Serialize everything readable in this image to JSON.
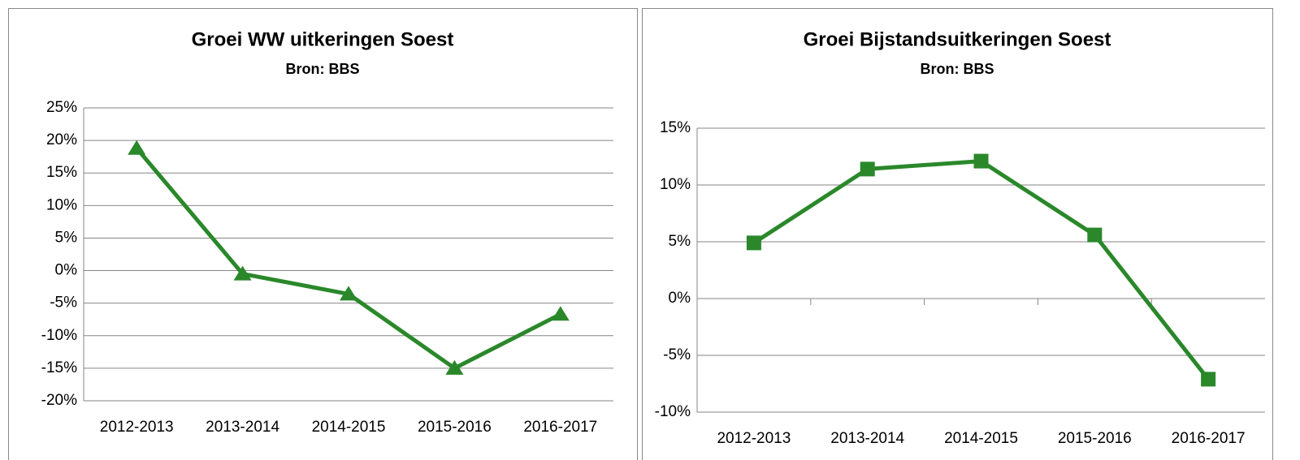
{
  "chart_data": [
    {
      "type": "line",
      "title": "Groei WW uitkeringen Soest",
      "subtitle": "Bron: BBS",
      "categories": [
        "2012-2013",
        "2013-2014",
        "2014-2015",
        "2015-2016",
        "2016-2017"
      ],
      "series": [
        {
          "color": "#2a882a",
          "marker": "triangle",
          "values": [
            18.8,
            -0.5,
            -3.6,
            -15,
            -6.7
          ]
        }
      ],
      "ylim": [
        -20,
        25
      ],
      "yticks": [
        {
          "value": -20,
          "label": "-20%"
        },
        {
          "value": -15,
          "label": "-15%"
        },
        {
          "value": -10,
          "label": "-10%"
        },
        {
          "value": -5,
          "label": "-5%"
        },
        {
          "value": 0,
          "label": "0%"
        },
        {
          "value": 5,
          "label": "5%"
        },
        {
          "value": 10,
          "label": "10%"
        },
        {
          "value": 15,
          "label": "15%"
        },
        {
          "value": 20,
          "label": "20%"
        },
        {
          "value": 25,
          "label": "25%"
        }
      ],
      "grid": true,
      "category_tick_marks": false
    },
    {
      "type": "line",
      "title": "Groei Bijstandsuitkeringen Soest",
      "subtitle": "Bron: BBS",
      "categories": [
        "2012-2013",
        "2013-2014",
        "2014-2015",
        "2015-2016",
        "2016-2017"
      ],
      "series": [
        {
          "color": "#2a882a",
          "marker": "square",
          "values": [
            4.9,
            11.4,
            12.1,
            5.6,
            -7.1
          ]
        }
      ],
      "ylim": [
        -10,
        15
      ],
      "yticks": [
        {
          "value": -10,
          "label": "-10%"
        },
        {
          "value": -5,
          "label": "-5%"
        },
        {
          "value": 0,
          "label": "0%"
        },
        {
          "value": 5,
          "label": "5%"
        },
        {
          "value": 10,
          "label": "10%"
        },
        {
          "value": 15,
          "label": "15%"
        }
      ],
      "grid": true,
      "category_tick_marks": true
    }
  ]
}
